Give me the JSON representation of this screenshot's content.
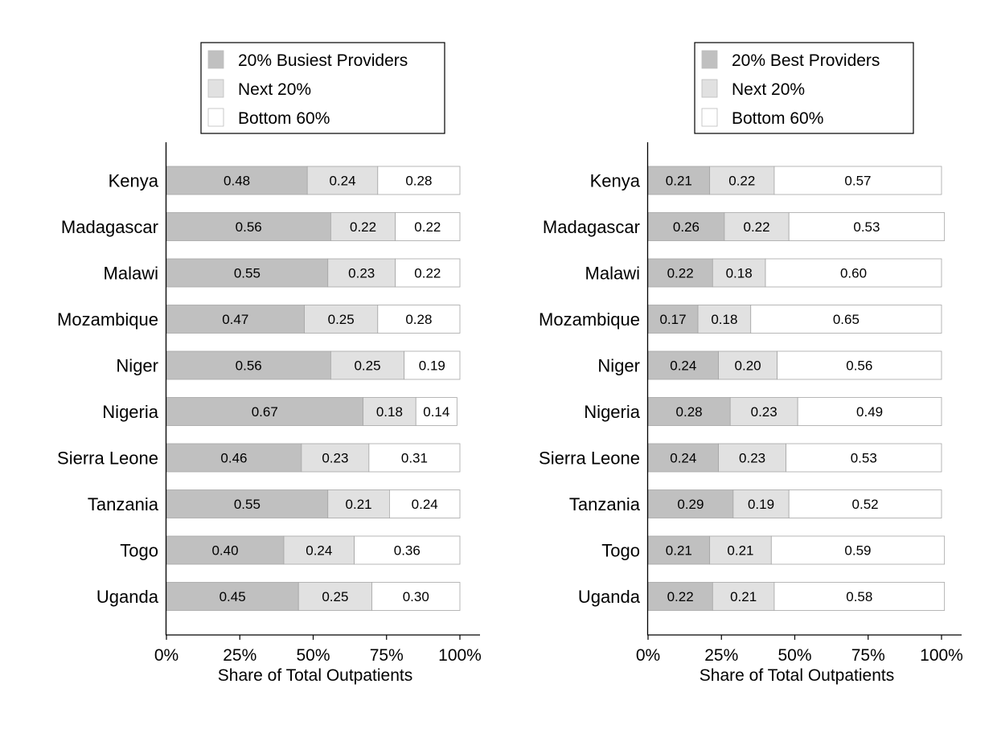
{
  "colors": {
    "top": "#c0c0c0",
    "next": "#e1e1e1",
    "bottom": "#ffffff",
    "segment_stroke": "#a6a6a6",
    "axis": "#000000"
  },
  "chart_data": [
    {
      "type": "bar",
      "orientation": "horizontal",
      "stacked": true,
      "categories": [
        "Kenya",
        "Madagascar",
        "Malawi",
        "Mozambique",
        "Niger",
        "Nigeria",
        "Sierra Leone",
        "Tanzania",
        "Togo",
        "Uganda"
      ],
      "series": [
        {
          "name": "20% Busiest Providers",
          "values": [
            0.48,
            0.56,
            0.55,
            0.47,
            0.56,
            0.67,
            0.46,
            0.55,
            0.4,
            0.45
          ]
        },
        {
          "name": "Next 20%",
          "values": [
            0.24,
            0.22,
            0.23,
            0.25,
            0.25,
            0.18,
            0.23,
            0.21,
            0.24,
            0.25
          ]
        },
        {
          "name": "Bottom 60%",
          "values": [
            0.28,
            0.22,
            0.22,
            0.28,
            0.19,
            0.14,
            0.31,
            0.24,
            0.36,
            0.3
          ]
        }
      ],
      "value_labels": [
        [
          "0.48",
          "0.56",
          "0.55",
          "0.47",
          "0.56",
          "0.67",
          "0.46",
          "0.55",
          "0.40",
          "0.45"
        ],
        [
          "0.24",
          "0.22",
          "0.23",
          "0.25",
          "0.25",
          "0.18",
          "0.23",
          "0.21",
          "0.24",
          "0.25"
        ],
        [
          "0.28",
          "0.22",
          "0.22",
          "0.28",
          "0.19",
          "0.14",
          "0.31",
          "0.24",
          "0.36",
          "0.30"
        ]
      ],
      "xlabel": "Share of Total Outpatients",
      "xlim": [
        0,
        1.05
      ],
      "xticks": [
        0,
        0.25,
        0.5,
        0.75,
        1.0
      ],
      "xtick_labels": [
        "0%",
        "25%",
        "50%",
        "75%",
        "100%"
      ],
      "grid": false,
      "legend_position": "top"
    },
    {
      "type": "bar",
      "orientation": "horizontal",
      "stacked": true,
      "categories": [
        "Kenya",
        "Madagascar",
        "Malawi",
        "Mozambique",
        "Niger",
        "Nigeria",
        "Sierra Leone",
        "Tanzania",
        "Togo",
        "Uganda"
      ],
      "series": [
        {
          "name": "20% Best Providers",
          "values": [
            0.21,
            0.26,
            0.22,
            0.17,
            0.24,
            0.28,
            0.24,
            0.29,
            0.21,
            0.22
          ]
        },
        {
          "name": "Next 20%",
          "values": [
            0.22,
            0.22,
            0.18,
            0.18,
            0.2,
            0.23,
            0.23,
            0.19,
            0.21,
            0.21
          ]
        },
        {
          "name": "Bottom 60%",
          "values": [
            0.57,
            0.53,
            0.6,
            0.65,
            0.56,
            0.49,
            0.53,
            0.52,
            0.59,
            0.58
          ]
        }
      ],
      "value_labels": [
        [
          "0.21",
          "0.26",
          "0.22",
          "0.17",
          "0.24",
          "0.28",
          "0.24",
          "0.29",
          "0.21",
          "0.22"
        ],
        [
          "0.22",
          "0.22",
          "0.18",
          "0.18",
          "0.20",
          "0.23",
          "0.23",
          "0.19",
          "0.21",
          "0.21"
        ],
        [
          "0.57",
          "0.53",
          "0.60",
          "0.65",
          "0.56",
          "0.49",
          "0.53",
          "0.52",
          "0.59",
          "0.58"
        ]
      ],
      "xlabel": "Share of Total Outpatients",
      "xlim": [
        0,
        1.05
      ],
      "xticks": [
        0,
        0.25,
        0.5,
        0.75,
        1.0
      ],
      "xtick_labels": [
        "0%",
        "25%",
        "50%",
        "75%",
        "100%"
      ],
      "grid": false,
      "legend_position": "top"
    }
  ]
}
